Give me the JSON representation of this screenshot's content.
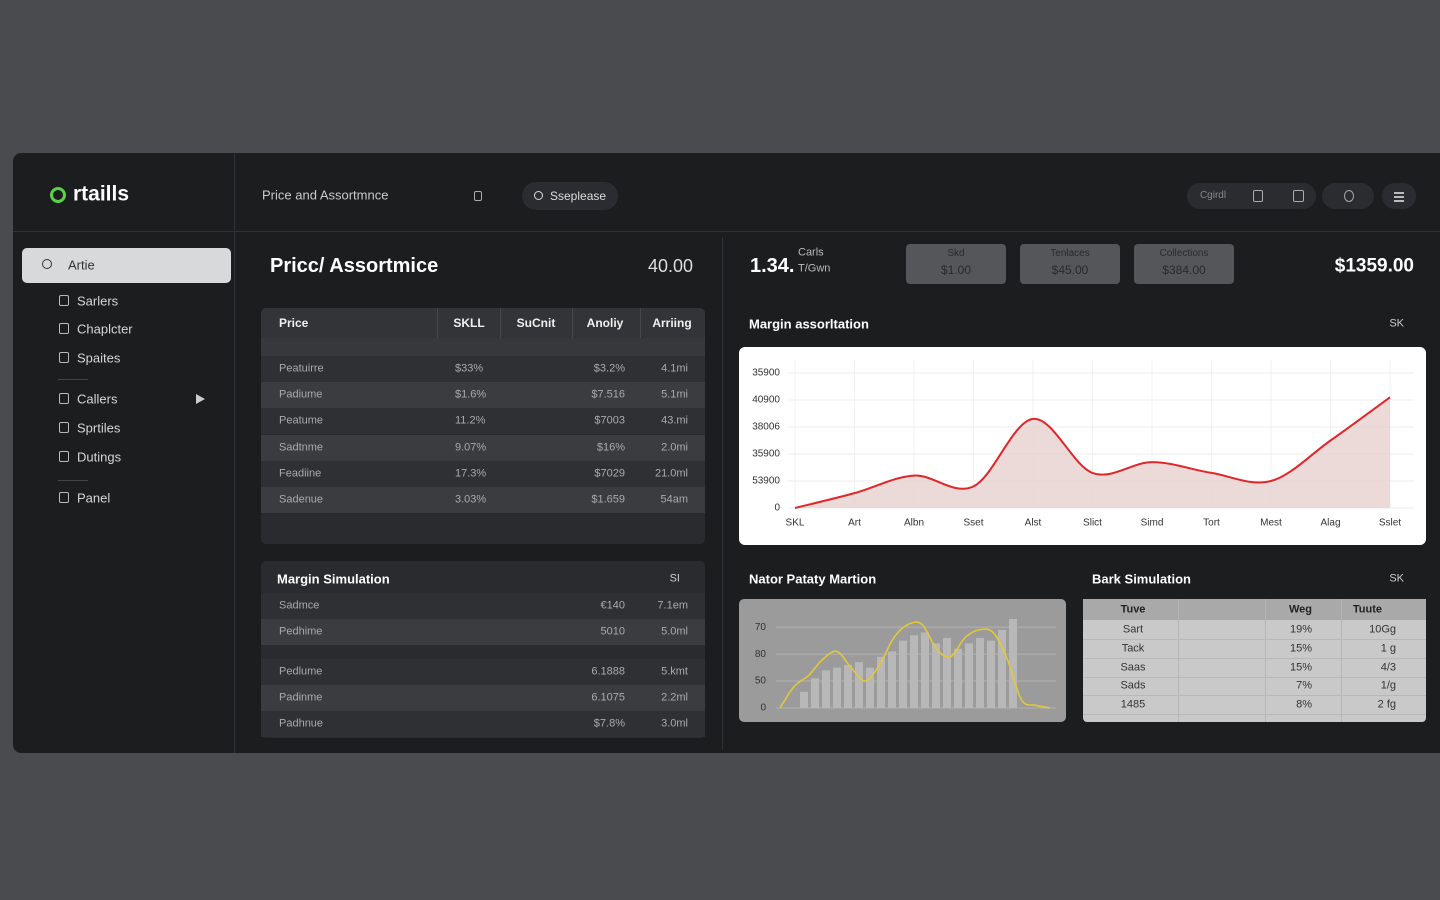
{
  "header": {
    "logo": "rtaills",
    "breadcrumb": "Price and Assortmnce",
    "search": "Sseplease",
    "toolbar_label": "Cgirdl"
  },
  "sidebar": {
    "search": "Artie",
    "items": [
      "Sarlers",
      "Chaplcter",
      "Spaites",
      "Callers",
      "Sprtiles",
      "Dutings",
      "Panel"
    ]
  },
  "price_panel": {
    "title": "Pricc/ Assortmice",
    "value": "40.00",
    "table": {
      "columns": [
        "Price",
        "SKLL",
        "SuCnit",
        "Anoliy",
        "Arriing"
      ],
      "rows": [
        [
          "Peatuirre",
          "$33%",
          "$3.2%",
          "4.1mi"
        ],
        [
          "Padiume",
          "$1.6%",
          "$7.516",
          "5.1mi"
        ],
        [
          "Peatume",
          "11.2%",
          "$7003",
          "43.mi"
        ],
        [
          "Sadtnme",
          "9.07%",
          "$16%",
          "2.0mi"
        ],
        [
          "Feadiine",
          "17.3%",
          "$7029",
          "21.0ml"
        ],
        [
          "Sadenue",
          "3.03%",
          "$1.659",
          "54am"
        ]
      ]
    }
  },
  "margin_simulation": {
    "title": "Margin Simulation",
    "dropdown": "SI",
    "rows": [
      [
        "Sadmce",
        "€140",
        "7.1em"
      ],
      [
        "Pedhime",
        "5010",
        "5.0ml"
      ],
      [
        "Pedlume",
        "6.1888",
        "5.kmt"
      ],
      [
        "Padinme",
        "6.1075",
        "2.2ml"
      ],
      [
        "Padhnue",
        "$7.8%",
        "3.0ml"
      ]
    ]
  },
  "summary": {
    "value": "1.34.",
    "caption_top": "Carls",
    "caption_bottom": "T/Gwn",
    "buttons": [
      {
        "label": "Skd",
        "value": "$1.00"
      },
      {
        "label": "Tenlaces",
        "value": "$45.00"
      },
      {
        "label": "Collections",
        "value": "$384.00"
      }
    ],
    "total": "$1359.00"
  },
  "margin_chart": {
    "type": "line",
    "title": "Margin assorltation",
    "dropdown": "SK",
    "categories": [
      "SKL",
      "Art",
      "Albn",
      "Sset",
      "Alst",
      "Slict",
      "Simd",
      "Tort",
      "Mest",
      "Alag",
      "Sslet"
    ],
    "values": [
      0,
      0.55,
      1.2,
      0.8,
      3.3,
      1.3,
      1.7,
      1.3,
      1.0,
      2.5,
      4.1
    ],
    "color": "#e0262b",
    "fill": "#e8d3d0",
    "ylim": [
      0,
      5.5
    ],
    "yticks": [
      {
        "value": 0,
        "label": "0"
      },
      {
        "value": 1,
        "label": "53900"
      },
      {
        "value": 2,
        "label": "35900"
      },
      {
        "value": 3,
        "label": "38006"
      },
      {
        "value": 4,
        "label": "40900"
      },
      {
        "value": 5,
        "label": "35900"
      }
    ],
    "grid": true
  },
  "bar_chart": {
    "type": "bar",
    "title": "Nator Pataty Martion",
    "values": [
      0.6,
      1.1,
      1.4,
      1.5,
      1.6,
      1.7,
      1.5,
      1.9,
      2.1,
      2.5,
      2.7,
      2.8,
      2.4,
      2.6,
      2.2,
      2.4,
      2.6,
      2.5,
      2.9,
      3.3
    ],
    "color": "#b8b8b8",
    "line_values": [
      0,
      0.8,
      1.2,
      1.8,
      2.1,
      1.5,
      1.0,
      1.6,
      2.6,
      3.1,
      3.1,
      2.2,
      1.9,
      2.6,
      2.9,
      2.8,
      1.8,
      0.3,
      0.1,
      0
    ],
    "line_color": "#e3c83a",
    "ylim": [
      0,
      3.6
    ],
    "yticks": [
      {
        "value": 0,
        "label": "0"
      },
      {
        "value": 1,
        "label": "50"
      },
      {
        "value": 2,
        "label": "80"
      },
      {
        "value": 3,
        "label": "70"
      }
    ],
    "grid": true
  },
  "back_simulation": {
    "title": "Bark Simulation",
    "dropdown": "SK",
    "columns": [
      "Tuve",
      "Weg",
      "Tuute"
    ],
    "rows": [
      [
        "Sart",
        "19%",
        "10Gg"
      ],
      [
        "Tack",
        "15%",
        "1 g"
      ],
      [
        "Saas",
        "15%",
        "4/3"
      ],
      [
        "Sads",
        "7%",
        "1/g"
      ],
      [
        "1485",
        "8%",
        "2 fg"
      ]
    ]
  }
}
